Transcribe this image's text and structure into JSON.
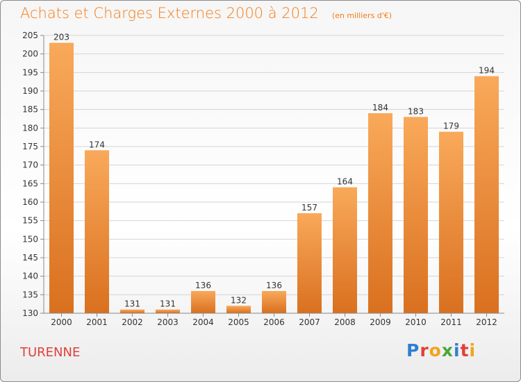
{
  "header": {
    "title": "Achats et Charges Externes 2000 à 2012",
    "unit": "(en milliers d'€)"
  },
  "footer": {
    "city": "TURENNE",
    "brand": "Proxiti"
  },
  "colors": {
    "title": "#f47b14",
    "city": "#e0403a",
    "bar_top": "#f9a95a",
    "bar_bottom": "#d9701f"
  },
  "chart_data": {
    "type": "bar",
    "title": "Achats et Charges Externes 2000 à 2012",
    "unit": "(en milliers d'€)",
    "categories": [
      "2000",
      "2001",
      "2002",
      "2003",
      "2004",
      "2005",
      "2006",
      "2007",
      "2008",
      "2009",
      "2010",
      "2011",
      "2012"
    ],
    "values": [
      203,
      174,
      131,
      131,
      136,
      132,
      136,
      157,
      164,
      184,
      183,
      179,
      194
    ],
    "ylim": [
      130,
      205
    ],
    "yticks": [
      130,
      135,
      140,
      145,
      150,
      155,
      160,
      165,
      170,
      175,
      180,
      185,
      190,
      195,
      200,
      205
    ],
    "grid": true,
    "legend": "none"
  }
}
